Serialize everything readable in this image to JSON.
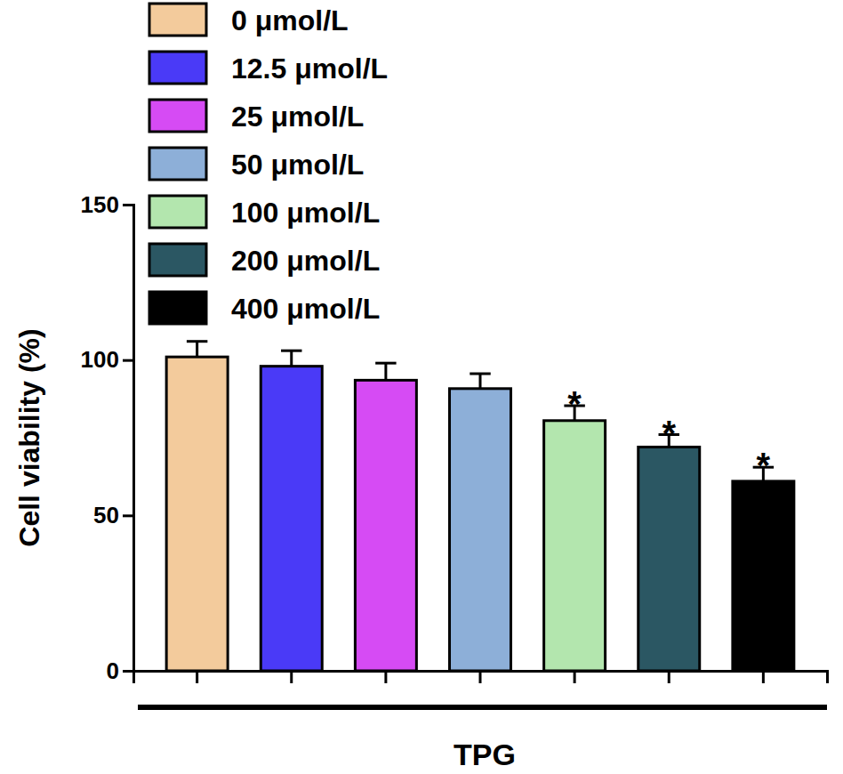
{
  "chart_data": {
    "type": "bar",
    "categories": [
      "0 μmol/L",
      "12.5 μmol/L",
      "25 μmol/L",
      "50 μmol/L",
      "100 μmol/L",
      "200 μmol/L",
      "400 μmol/L"
    ],
    "values": [
      101,
      98,
      93.5,
      90.8,
      80.5,
      72,
      61
    ],
    "errors": [
      5,
      5,
      5.5,
      4.8,
      4.8,
      4,
      4.5
    ],
    "annotations": [
      null,
      null,
      null,
      null,
      "*",
      "*",
      "*"
    ],
    "colors": [
      "#f3cb9c",
      "#4a3af7",
      "#d64bf4",
      "#8dafd8",
      "#b3e6ae",
      "#2b5763",
      "#000000"
    ],
    "x_label": "TPG",
    "y_label": "Cell viability (%)",
    "ylim": [
      0,
      150
    ],
    "yticks": [
      0,
      50,
      100,
      150
    ],
    "grid": false,
    "legend": "top-left",
    "tick_labels": "y"
  }
}
